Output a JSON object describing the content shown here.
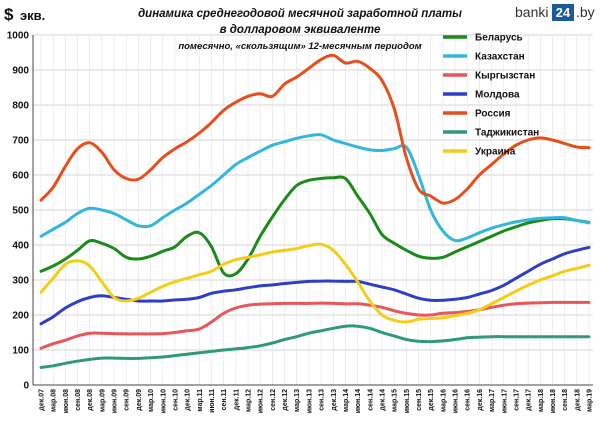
{
  "header": {
    "currency_symbol": "$",
    "currency_label": "экв.",
    "title_line1": "динамика среднегодовой месячной заработной платы",
    "title_line2": "в долларовом эквиваленте",
    "subtitle": "помесячно, «скользящим» 12-месячным периодом"
  },
  "logo": {
    "text_left": "banki",
    "text_num": "24",
    "text_right": ".by"
  },
  "chart_data": {
    "type": "line",
    "ylim": [
      0,
      1000
    ],
    "yticks": [
      0,
      100,
      200,
      300,
      400,
      500,
      600,
      700,
      800,
      900,
      1000
    ],
    "grid": true,
    "legend_position": "top-right",
    "x_labels": [
      "дек.07",
      "мар.08",
      "июн.08",
      "сен.08",
      "дек.08",
      "мар.09",
      "июн.09",
      "сен.09",
      "дек.09",
      "мар.10",
      "июн.10",
      "сен.10",
      "дек.10",
      "мар.11",
      "июн.11",
      "сен.11",
      "дек.11",
      "мар.12",
      "июн.12",
      "сен.12",
      "дек.12",
      "мар.13",
      "июн.13",
      "сен.13",
      "дек.13",
      "мар.14",
      "июн.14",
      "сен.14",
      "дек.14",
      "мар.15",
      "июн.15",
      "сен.15",
      "дек.15",
      "мар.16",
      "июн.16",
      "сен.16",
      "дек.16",
      "мар.17",
      "июн.17",
      "сен.17",
      "дек.17",
      "мар.18",
      "июн.18",
      "сен.18",
      "дек.18",
      "мар.19"
    ],
    "series": [
      {
        "name": "Беларусь",
        "color": "#1a8a1a",
        "values": [
          325,
          340,
          360,
          385,
          412,
          405,
          390,
          365,
          360,
          368,
          382,
          395,
          425,
          435,
          395,
          320,
          318,
          360,
          425,
          480,
          530,
          570,
          585,
          590,
          592,
          590,
          540,
          490,
          430,
          405,
          385,
          368,
          362,
          365,
          380,
          395,
          410,
          425,
          440,
          452,
          463,
          470,
          475,
          475,
          470,
          465
        ]
      },
      {
        "name": "Казахстан",
        "color": "#33b5dd",
        "values": [
          425,
          445,
          465,
          490,
          505,
          500,
          490,
          472,
          455,
          455,
          478,
          500,
          520,
          545,
          570,
          600,
          630,
          650,
          668,
          685,
          695,
          705,
          712,
          715,
          700,
          690,
          680,
          672,
          670,
          675,
          680,
          600,
          500,
          440,
          413,
          420,
          435,
          448,
          458,
          466,
          472,
          476,
          478,
          478,
          470,
          463
        ]
      },
      {
        "name": "Кыргызстан",
        "color": "#e8555a",
        "values": [
          105,
          118,
          128,
          140,
          148,
          148,
          147,
          146,
          146,
          146,
          147,
          150,
          155,
          160,
          180,
          205,
          220,
          228,
          231,
          232,
          233,
          233,
          233,
          234,
          233,
          232,
          232,
          228,
          222,
          212,
          205,
          200,
          200,
          205,
          207,
          210,
          215,
          222,
          228,
          232,
          234,
          235,
          236,
          236,
          236,
          236
        ]
      },
      {
        "name": "Молдова",
        "color": "#2e3ec8",
        "values": [
          175,
          195,
          220,
          238,
          250,
          255,
          250,
          245,
          240,
          240,
          240,
          243,
          245,
          250,
          262,
          268,
          272,
          278,
          283,
          286,
          290,
          293,
          296,
          297,
          297,
          296,
          296,
          288,
          280,
          272,
          260,
          248,
          242,
          242,
          245,
          250,
          260,
          270,
          285,
          305,
          325,
          345,
          360,
          375,
          385,
          393
        ]
      },
      {
        "name": "Россия",
        "color": "#e84d1c",
        "values": [
          528,
          565,
          625,
          675,
          692,
          665,
          615,
          590,
          588,
          615,
          650,
          675,
          695,
          720,
          750,
          785,
          808,
          825,
          832,
          825,
          860,
          880,
          905,
          930,
          942,
          920,
          925,
          905,
          870,
          790,
          650,
          560,
          540,
          520,
          530,
          560,
          600,
          630,
          660,
          685,
          700,
          706,
          700,
          690,
          680,
          678
        ]
      },
      {
        "name": "Таджикистан",
        "color": "#2e9a7a",
        "values": [
          50,
          55,
          62,
          68,
          73,
          77,
          77,
          76,
          76,
          78,
          80,
          84,
          88,
          92,
          96,
          100,
          103,
          107,
          112,
          120,
          130,
          138,
          148,
          155,
          162,
          168,
          168,
          162,
          150,
          140,
          130,
          125,
          124,
          126,
          130,
          135,
          137,
          138,
          138,
          138,
          138,
          138,
          138,
          138,
          138,
          138
        ]
      },
      {
        "name": "Украина",
        "color": "#f5cc16",
        "values": [
          265,
          305,
          345,
          355,
          340,
          295,
          250,
          240,
          248,
          265,
          282,
          295,
          305,
          315,
          325,
          345,
          358,
          365,
          372,
          380,
          385,
          390,
          398,
          402,
          385,
          345,
          295,
          240,
          200,
          185,
          180,
          188,
          190,
          192,
          198,
          205,
          215,
          232,
          250,
          268,
          285,
          300,
          312,
          325,
          333,
          342
        ]
      }
    ]
  }
}
